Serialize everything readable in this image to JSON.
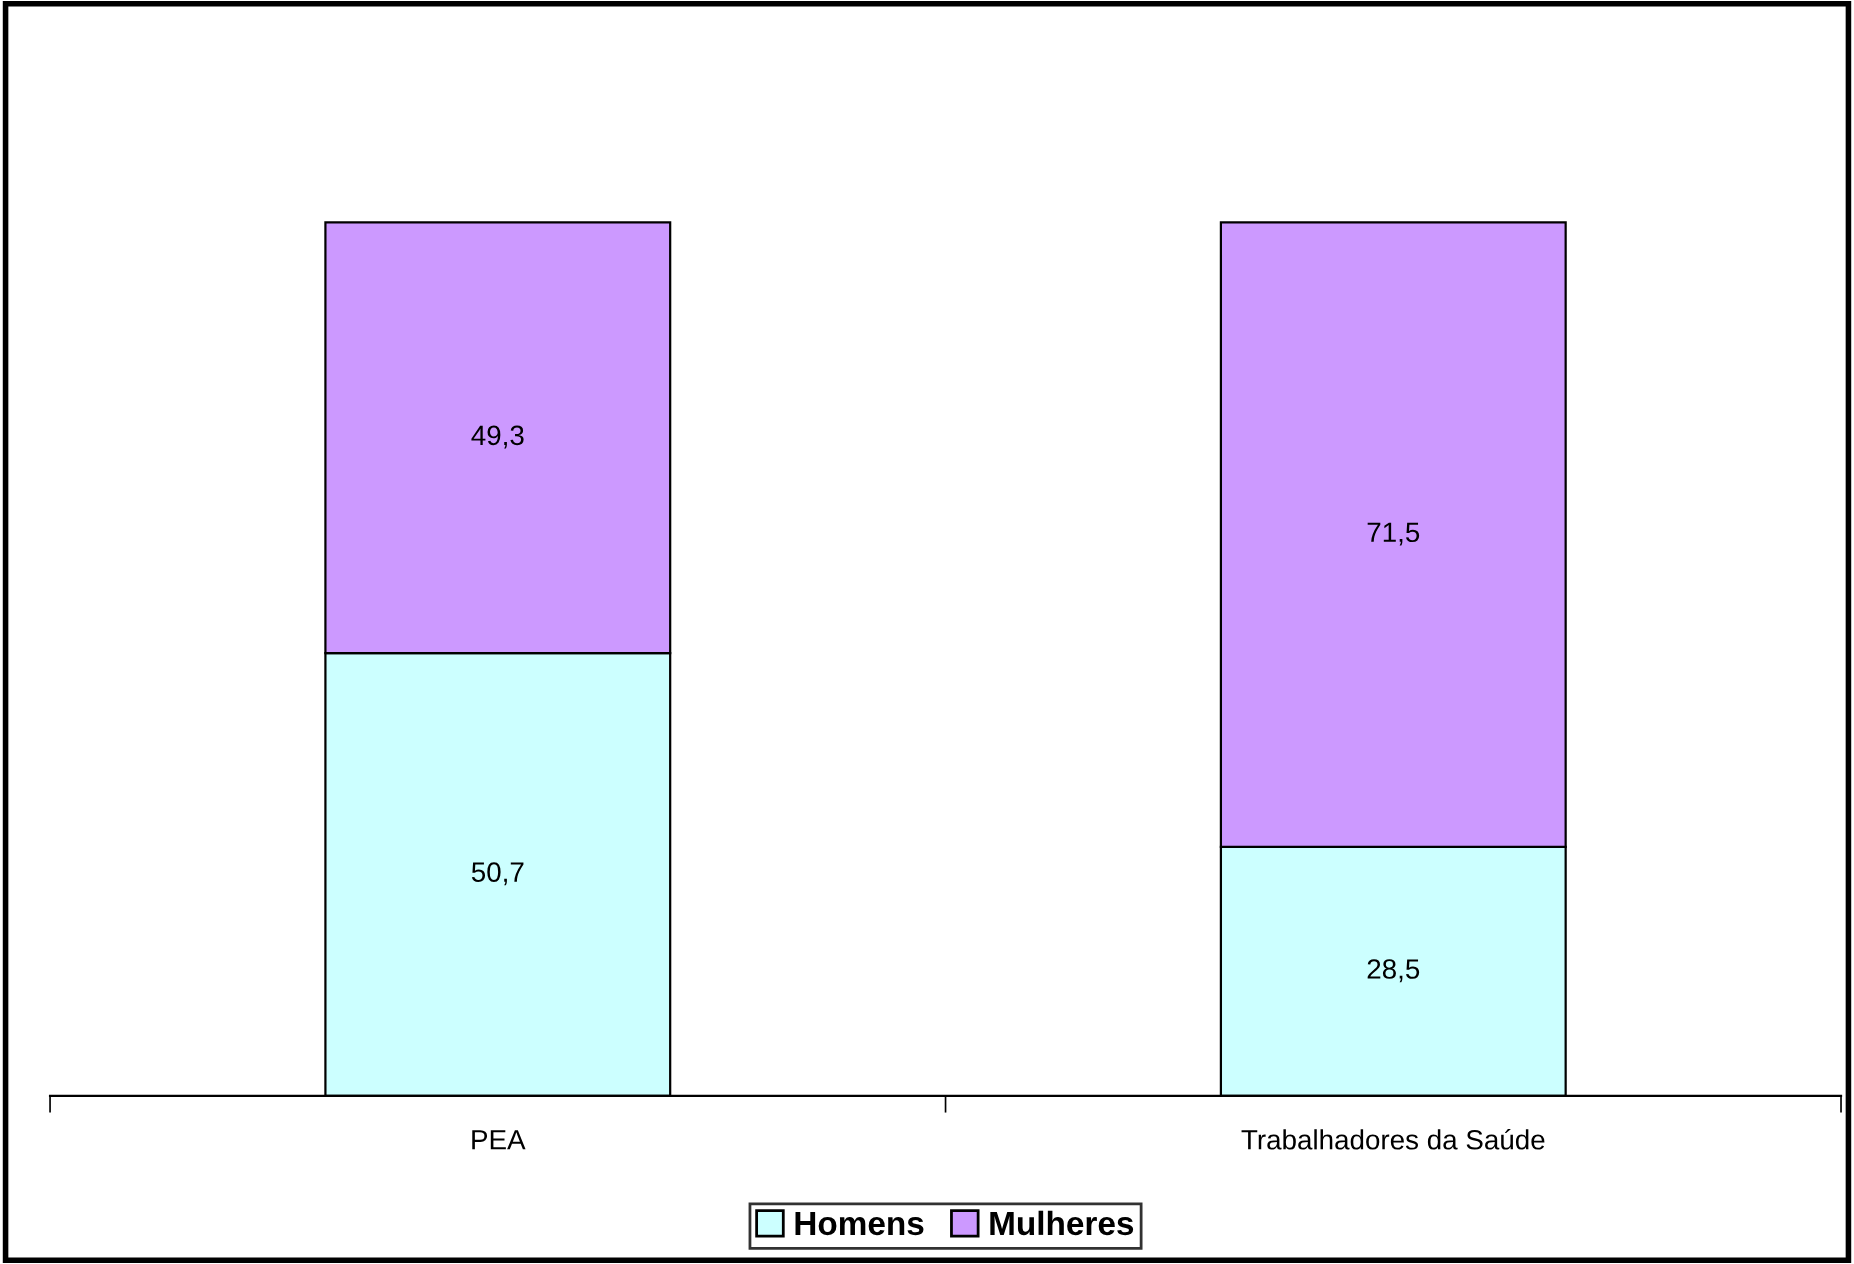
{
  "chart_data": {
    "type": "bar",
    "stacked": true,
    "categories": [
      "PEA",
      "Trabalhadores da Saúde"
    ],
    "series": [
      {
        "name": "Homens",
        "color": "#ccffff",
        "values": [
          50.7,
          28.5
        ],
        "value_labels": [
          "50,7",
          "28,5"
        ]
      },
      {
        "name": "Mulheres",
        "color": "#cc99ff",
        "values": [
          49.3,
          71.5
        ],
        "value_labels": [
          "49,3",
          "71,5"
        ]
      }
    ],
    "legend": "bottom",
    "grid": false,
    "tick_labels": "x"
  }
}
